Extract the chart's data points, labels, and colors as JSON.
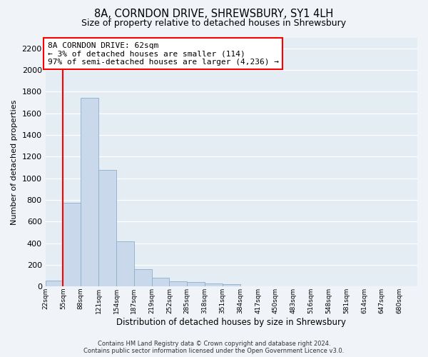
{
  "title": "8A, CORNDON DRIVE, SHREWSBURY, SY1 4LH",
  "subtitle": "Size of property relative to detached houses in Shrewsbury",
  "xlabel": "Distribution of detached houses by size in Shrewsbury",
  "ylabel": "Number of detached properties",
  "bin_labels": [
    "22sqm",
    "55sqm",
    "88sqm",
    "121sqm",
    "154sqm",
    "187sqm",
    "219sqm",
    "252sqm",
    "285sqm",
    "318sqm",
    "351sqm",
    "384sqm",
    "417sqm",
    "450sqm",
    "483sqm",
    "516sqm",
    "548sqm",
    "581sqm",
    "614sqm",
    "647sqm",
    "680sqm"
  ],
  "bar_heights": [
    55,
    770,
    1740,
    1075,
    420,
    160,
    80,
    48,
    40,
    30,
    20,
    0,
    0,
    0,
    0,
    0,
    0,
    0,
    0,
    0,
    0
  ],
  "bar_color": "#c9d9eb",
  "bar_edgecolor": "#8bafc8",
  "ylim": [
    0,
    2300
  ],
  "yticks": [
    0,
    200,
    400,
    600,
    800,
    1000,
    1200,
    1400,
    1600,
    1800,
    2000,
    2200
  ],
  "annotation_title": "8A CORNDON DRIVE: 62sqm",
  "annotation_line1": "← 3% of detached houses are smaller (114)",
  "annotation_line2": "97% of semi-detached houses are larger (4,236) →",
  "property_line_x": 1.0,
  "footer_line1": "Contains HM Land Registry data © Crown copyright and database right 2024.",
  "footer_line2": "Contains public sector information licensed under the Open Government Licence v3.0.",
  "bg_color": "#f0f4f8",
  "plot_bg_color": "#e4ecf4",
  "grid_color": "#d0d8e4",
  "title_fontsize": 10.5,
  "subtitle_fontsize": 9,
  "annotation_fontsize": 8,
  "ylabel_fontsize": 8,
  "xlabel_fontsize": 8.5,
  "ytick_fontsize": 8,
  "xtick_fontsize": 6.5,
  "footer_fontsize": 6
}
